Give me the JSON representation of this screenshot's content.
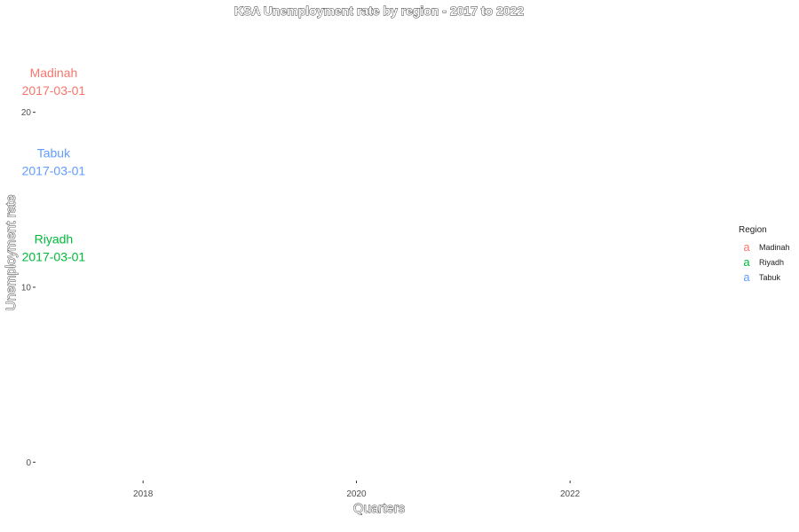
{
  "chart_data": {
    "type": "scatter",
    "title": "KSA Unemployment rate by region - 2017 to 2022",
    "xlabel": "Quarters",
    "ylabel": "Unemployment rate",
    "x_scale": "date",
    "xlim": [
      "2017-01-01",
      "2023-06-01"
    ],
    "ylim": [
      -1,
      25
    ],
    "x_ticks": [
      "2018",
      "2020",
      "2022"
    ],
    "y_ticks": [
      0,
      10,
      20
    ],
    "grid": false,
    "legend": {
      "title": "Region",
      "position": "right",
      "key_glyph": "a",
      "entries": [
        "Madinah",
        "Riyadh",
        "Tabuk"
      ]
    },
    "series": [
      {
        "name": "Madinah",
        "color": "#F8766D",
        "points": [
          {
            "x": "2017-03-01",
            "y": 21.0,
            "label": "2017-03-01"
          }
        ]
      },
      {
        "name": "Riyadh",
        "color": "#00BA38",
        "points": [
          {
            "x": "2017-03-01",
            "y": 11.5,
            "label": "2017-03-01"
          }
        ]
      },
      {
        "name": "Tabuk",
        "color": "#619CFF",
        "points": [
          {
            "x": "2017-03-01",
            "y": 16.4,
            "label": "2017-03-01"
          }
        ]
      }
    ]
  }
}
